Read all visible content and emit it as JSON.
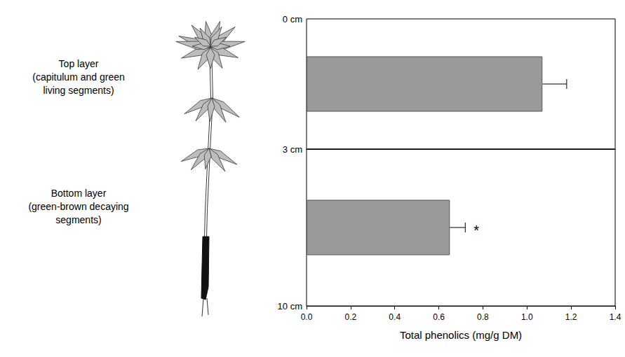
{
  "chart_data": {
    "type": "bar",
    "orientation": "horizontal",
    "categories": [
      "Top layer",
      "Bottom layer"
    ],
    "category_descriptions": [
      "(capitulum and green living segments)",
      "(green-brown decaying segments)"
    ],
    "values": [
      1.07,
      0.65
    ],
    "errors": [
      0.11,
      0.07
    ],
    "annotations": [
      {
        "category": "Bottom layer",
        "text": "*"
      }
    ],
    "depth_labels": [
      "0 cm",
      "3 cm",
      "10 cm"
    ],
    "xlabel": "Total phenolics (mg/g DM)",
    "xlim": [
      0,
      1.4
    ],
    "xticks": [
      {
        "value": 0,
        "label": "0.0"
      },
      0.2,
      0.4,
      0.6,
      0.8,
      {
        "value": 1,
        "label": "1.0"
      },
      1.2,
      1.4
    ],
    "color": "#999999",
    "grid": false
  }
}
